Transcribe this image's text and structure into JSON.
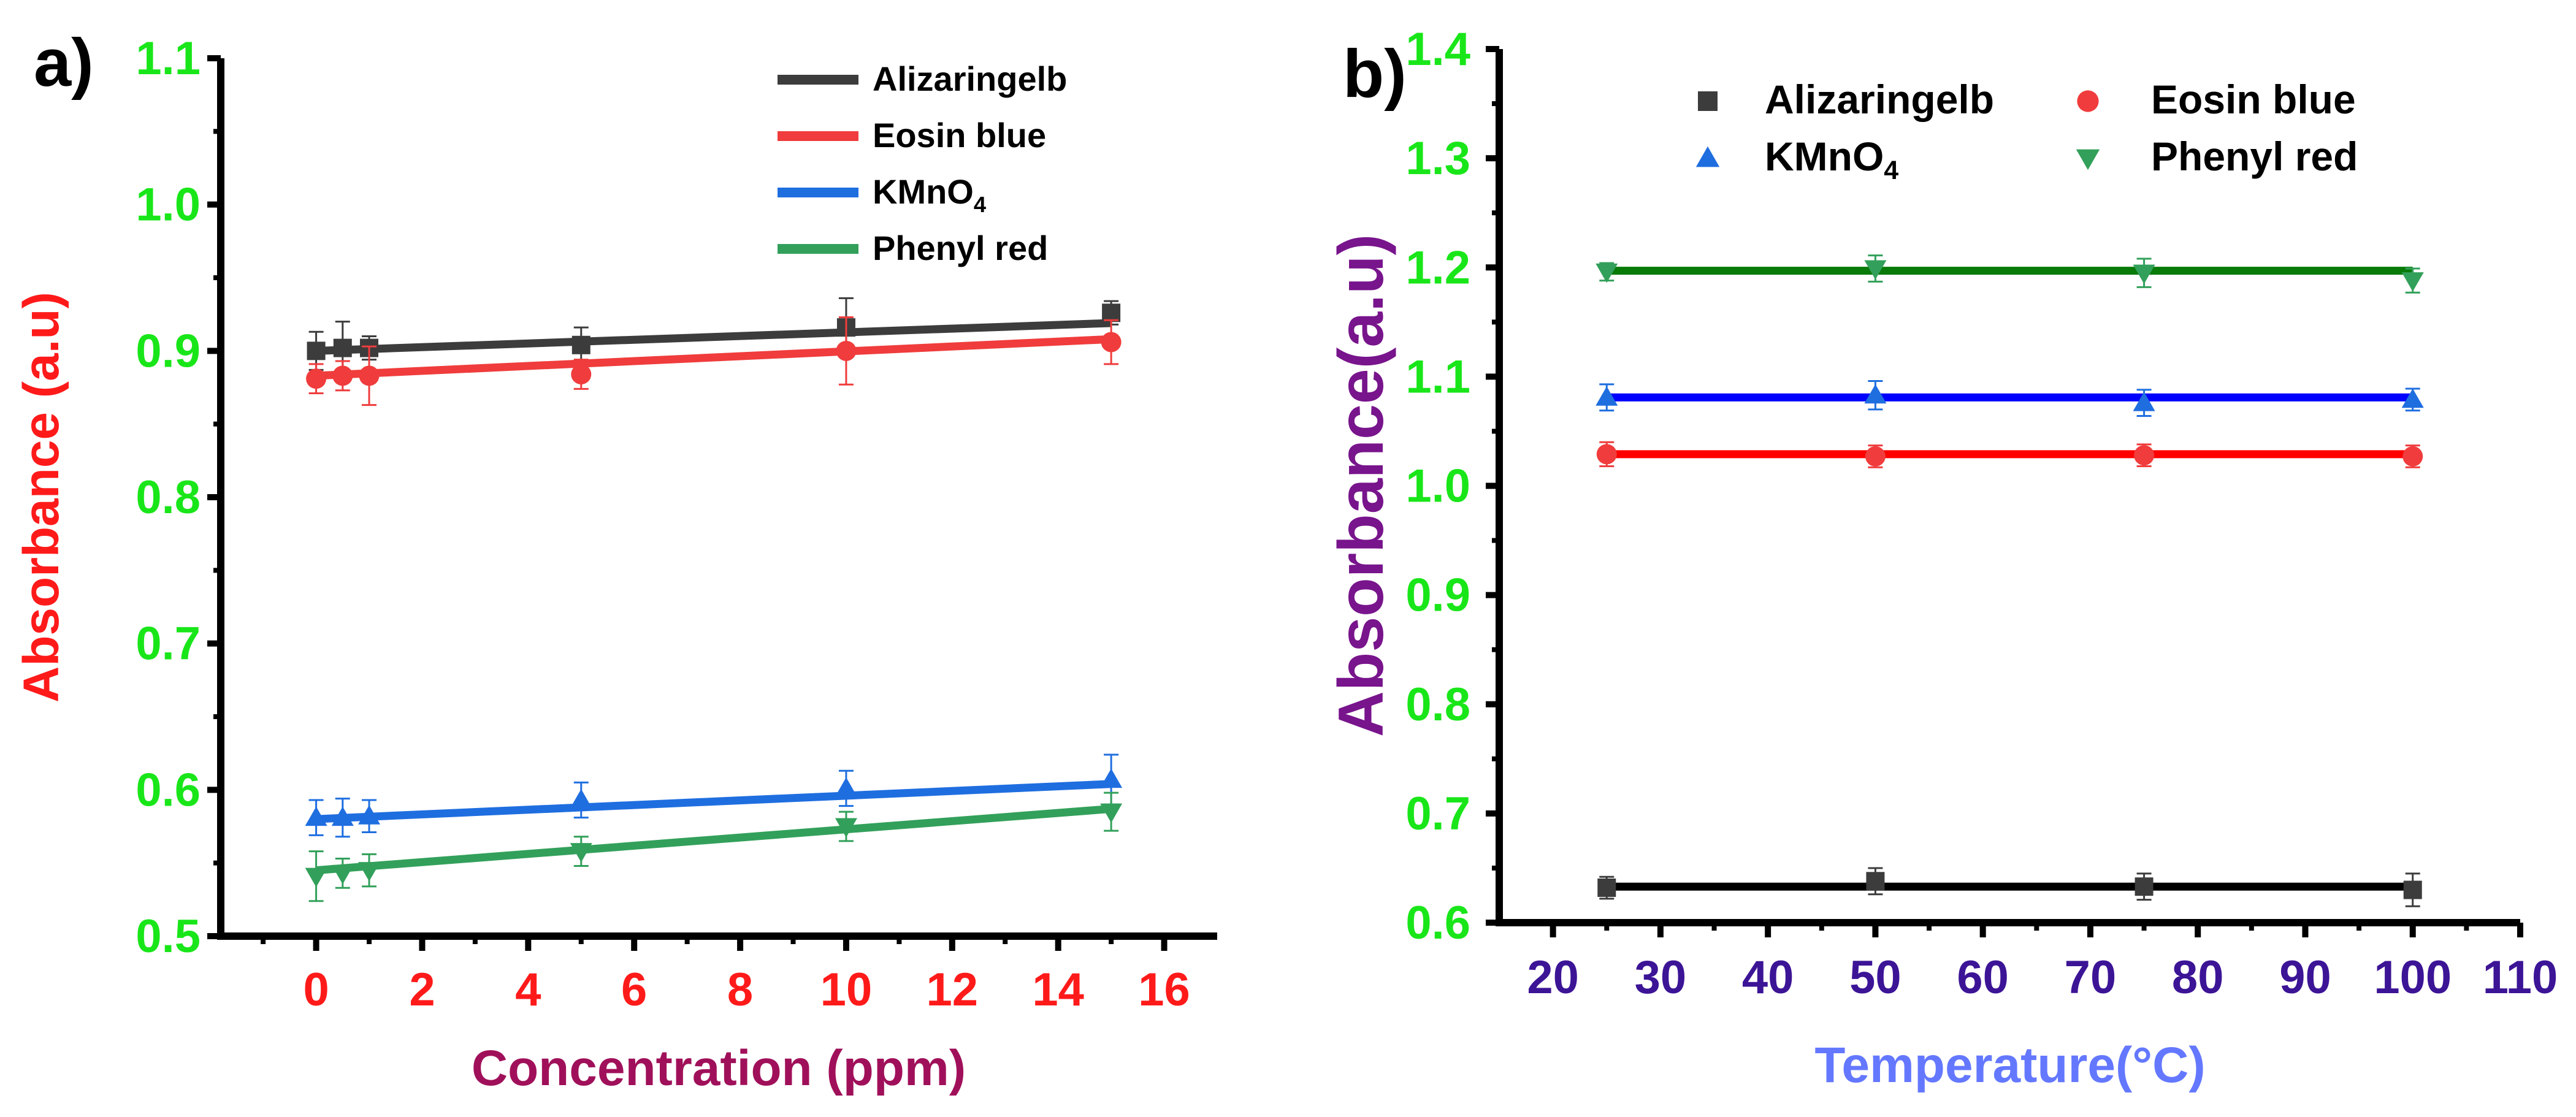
{
  "figure": {
    "panel_a_label": "a)",
    "panel_b_label": "b)"
  },
  "chart_data": [
    {
      "id": "a",
      "type": "scatter",
      "xlabel": "Concentration (ppm)",
      "ylabel": "Absorbance (a.u)",
      "xlim": [
        -1.8,
        17
      ],
      "ylim": [
        0.5,
        1.1
      ],
      "xticks": [
        0,
        2,
        4,
        6,
        8,
        10,
        12,
        14,
        16
      ],
      "yticks": [
        0.5,
        0.6,
        0.7,
        0.8,
        0.9,
        1.0,
        1.1
      ],
      "ytick_labels": [
        "0.5",
        "0.6",
        "0.7",
        "0.8",
        "0.9",
        "1.0",
        "1.1"
      ],
      "legend_position": "top-right",
      "colors": {
        "xtick": "#ff1a1a",
        "ytick": "#19e619",
        "xlabel": "#a0105a",
        "ylabel": "#ff1a1a"
      },
      "series": [
        {
          "name": "Alizaringelb",
          "name_main": "Alizaringelb",
          "color": "#3c3c3c",
          "marker": "square",
          "x": [
            0,
            0.5,
            1,
            5,
            10,
            15
          ],
          "y": [
            0.9,
            0.902,
            0.902,
            0.904,
            0.916,
            0.926
          ],
          "err": [
            0.013,
            0.018,
            0.008,
            0.012,
            0.02,
            0.008
          ],
          "fit": [
            0.9,
            0.919
          ]
        },
        {
          "name": "Eosin blue",
          "name_main": "Eosin blue",
          "color": "#f03c3c",
          "marker": "circle",
          "x": [
            0,
            0.5,
            1,
            5,
            10,
            15
          ],
          "y": [
            0.881,
            0.883,
            0.883,
            0.884,
            0.9,
            0.906
          ],
          "err": [
            0.01,
            0.01,
            0.02,
            0.01,
            0.023,
            0.015
          ],
          "fit": [
            0.883,
            0.908
          ]
        },
        {
          "name": "KMnO4",
          "name_main": "KMnO",
          "name_sub": "4",
          "color": "#1f6ee0",
          "marker": "triangle-up",
          "x": [
            0,
            0.5,
            1,
            5,
            10,
            15
          ],
          "y": [
            0.581,
            0.581,
            0.582,
            0.593,
            0.601,
            0.607
          ],
          "err": [
            0.012,
            0.013,
            0.011,
            0.012,
            0.012,
            0.017
          ],
          "fit": [
            0.58,
            0.604
          ]
        },
        {
          "name": "Phenyl red",
          "name_main": "Phenyl red",
          "color": "#32a05a",
          "marker": "triangle-down",
          "x": [
            0,
            0.5,
            1,
            5,
            10,
            15
          ],
          "y": [
            0.541,
            0.543,
            0.545,
            0.558,
            0.575,
            0.585
          ],
          "err": [
            0.017,
            0.01,
            0.011,
            0.01,
            0.01,
            0.013
          ],
          "fit": [
            0.545,
            0.587
          ]
        }
      ]
    },
    {
      "id": "b",
      "type": "scatter",
      "xlabel": "Temperature(°C)",
      "ylabel": "Absorbance(a.u)",
      "xlim": [
        15,
        110
      ],
      "ylim": [
        0.6,
        1.4
      ],
      "xticks": [
        20,
        30,
        40,
        50,
        60,
        70,
        80,
        90,
        100,
        110
      ],
      "yticks": [
        0.6,
        0.7,
        0.8,
        0.9,
        1.0,
        1.1,
        1.2,
        1.3,
        1.4
      ],
      "ytick_labels": [
        "0.6",
        "0.7",
        "0.8",
        "0.9",
        "1.0",
        "1.1",
        "1.2",
        "1.3",
        "1.4"
      ],
      "legend_position": "top",
      "colors": {
        "xtick": "#3c1496",
        "ytick": "#19e619",
        "xlabel": "#6478ff",
        "ylabel": "#78148c"
      },
      "series": [
        {
          "name": "Alizaringelb",
          "name_main": "Alizaringelb",
          "color": "#3c3c3c",
          "marker": "square",
          "text_color": "#000000",
          "fit_color": "#000000",
          "x": [
            25,
            50,
            75,
            100
          ],
          "y": [
            0.632,
            0.638,
            0.633,
            0.63
          ],
          "err": [
            0.01,
            0.012,
            0.012,
            0.015
          ],
          "fit": [
            0.633,
            0.633
          ]
        },
        {
          "name": "Eosin blue",
          "name_main": "Eosin blue",
          "color": "#f03c3c",
          "marker": "circle",
          "text_color": "#ff0000",
          "fit_color": "#ff0000",
          "x": [
            25,
            50,
            75,
            100
          ],
          "y": [
            1.029,
            1.027,
            1.028,
            1.027
          ],
          "err": [
            0.011,
            0.01,
            0.01,
            0.01
          ],
          "fit": [
            1.029,
            1.029
          ]
        },
        {
          "name": "KMnO4",
          "name_main": "KMnO",
          "name_sub": "4",
          "color": "#1f6ee0",
          "marker": "triangle-up",
          "text_color": "#0000ff",
          "fit_color": "#0000ff",
          "x": [
            25,
            50,
            75,
            100
          ],
          "y": [
            1.081,
            1.083,
            1.076,
            1.079
          ],
          "err": [
            0.012,
            0.013,
            0.012,
            0.01
          ],
          "fit": [
            1.081,
            1.081
          ]
        },
        {
          "name": "Phenyl red",
          "name_main": "Phenyl red",
          "color": "#32a05a",
          "marker": "triangle-down",
          "text_color": "#087a08",
          "fit_color": "#087a08",
          "x": [
            25,
            50,
            75,
            100
          ],
          "y": [
            1.196,
            1.199,
            1.195,
            1.188
          ],
          "err": [
            0.008,
            0.012,
            0.013,
            0.011
          ],
          "fit": [
            1.197,
            1.197
          ]
        }
      ]
    }
  ]
}
